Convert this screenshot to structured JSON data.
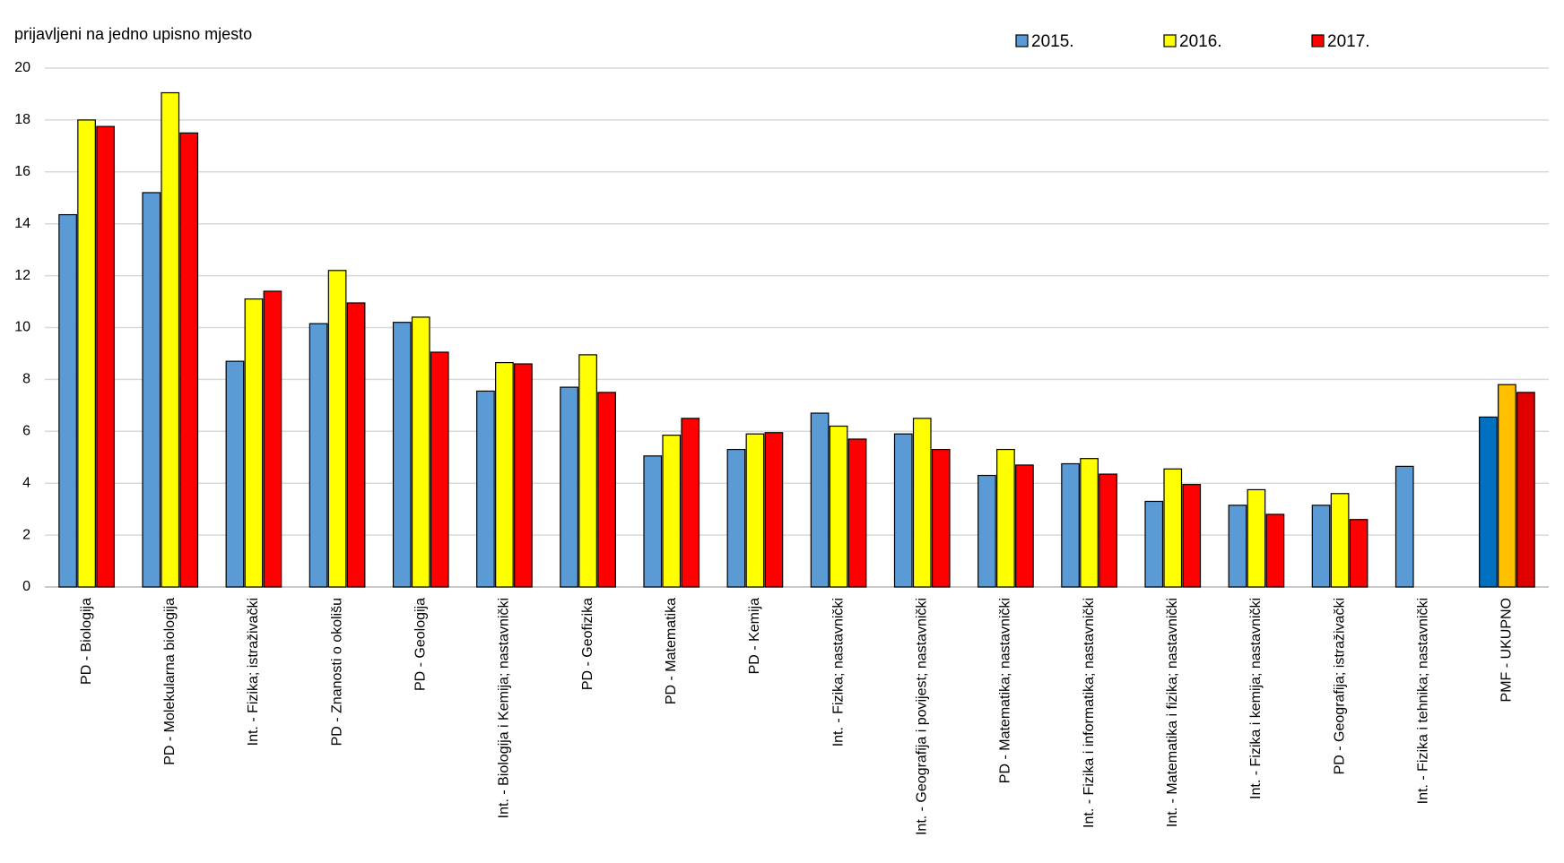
{
  "chart_data": {
    "type": "bar",
    "y_axis_label": "prijavljeni na jedno upisno mjesto",
    "categories": [
      "PD - Biologija",
      "PD - Molekularna biologija",
      "Int. - Fizika; istraživački",
      "PD - Znanosti o okolišu",
      "PD - Geologija",
      "Int. - Biologija i Kemija; nastavnički",
      "PD - Geofizika",
      "PD - Matematika",
      "PD - Kemija",
      "Int. - Fizika; nastavnički",
      "Int. - Geografija i povijest; nastavnički",
      "PD - Matematika; nastavnički",
      "Int. - Fizika i informatika; nastavnički",
      "Int. - Matematika i fizika; nastavnički",
      "Int. - Fizika i kemija; nastavnički",
      "PD - Geografija; istraživački",
      "Int. - Fizika i tehnika; nastavnički",
      "PMF - UKUPNO"
    ],
    "series": [
      {
        "name": "2015.",
        "color": "#5b9bd5",
        "colors": [
          "#5b9bd5",
          "#5b9bd5",
          "#5b9bd5",
          "#5b9bd5",
          "#5b9bd5",
          "#5b9bd5",
          "#5b9bd5",
          "#5b9bd5",
          "#5b9bd5",
          "#5b9bd5",
          "#5b9bd5",
          "#5b9bd5",
          "#5b9bd5",
          "#5b9bd5",
          "#5b9bd5",
          "#5b9bd5",
          "#5b9bd5",
          "#0070c0"
        ],
        "values": [
          14.35,
          15.2,
          8.7,
          10.15,
          10.2,
          7.55,
          7.7,
          5.05,
          5.3,
          6.7,
          5.9,
          4.3,
          4.75,
          3.3,
          3.15,
          3.15,
          4.65,
          6.55
        ]
      },
      {
        "name": "2016.",
        "color": "#ffff00",
        "colors": [
          "#ffff00",
          "#ffff00",
          "#ffff00",
          "#ffff00",
          "#ffff00",
          "#ffff00",
          "#ffff00",
          "#ffff00",
          "#ffff00",
          "#ffff00",
          "#ffff00",
          "#ffff00",
          "#ffff00",
          "#ffff00",
          "#ffff00",
          "#ffff00",
          "#ffff00",
          "#ffc000"
        ],
        "values": [
          18,
          19.05,
          11.1,
          12.2,
          10.4,
          8.65,
          8.95,
          5.85,
          5.9,
          6.2,
          6.5,
          5.3,
          4.95,
          4.55,
          3.75,
          3.6,
          null,
          7.8
        ]
      },
      {
        "name": "2017.",
        "color": "#ff0000",
        "colors": [
          "#ff0000",
          "#ff0000",
          "#ff0000",
          "#ff0000",
          "#ff0000",
          "#ff0000",
          "#ff0000",
          "#ff0000",
          "#ff0000",
          "#ff0000",
          "#ff0000",
          "#ff0000",
          "#ff0000",
          "#ff0000",
          "#ff0000",
          "#ff0000",
          "#ff0000",
          "#e00000"
        ],
        "values": [
          17.75,
          17.5,
          11.4,
          10.95,
          9.05,
          8.6,
          7.5,
          6.5,
          5.95,
          5.7,
          5.3,
          4.7,
          4.35,
          3.95,
          2.8,
          2.6,
          null,
          7.5
        ]
      }
    ],
    "ylim": [
      0,
      20
    ],
    "yticks": [
      0,
      2,
      4,
      6,
      8,
      10,
      12,
      14,
      16,
      18,
      20
    ],
    "grid": true
  }
}
